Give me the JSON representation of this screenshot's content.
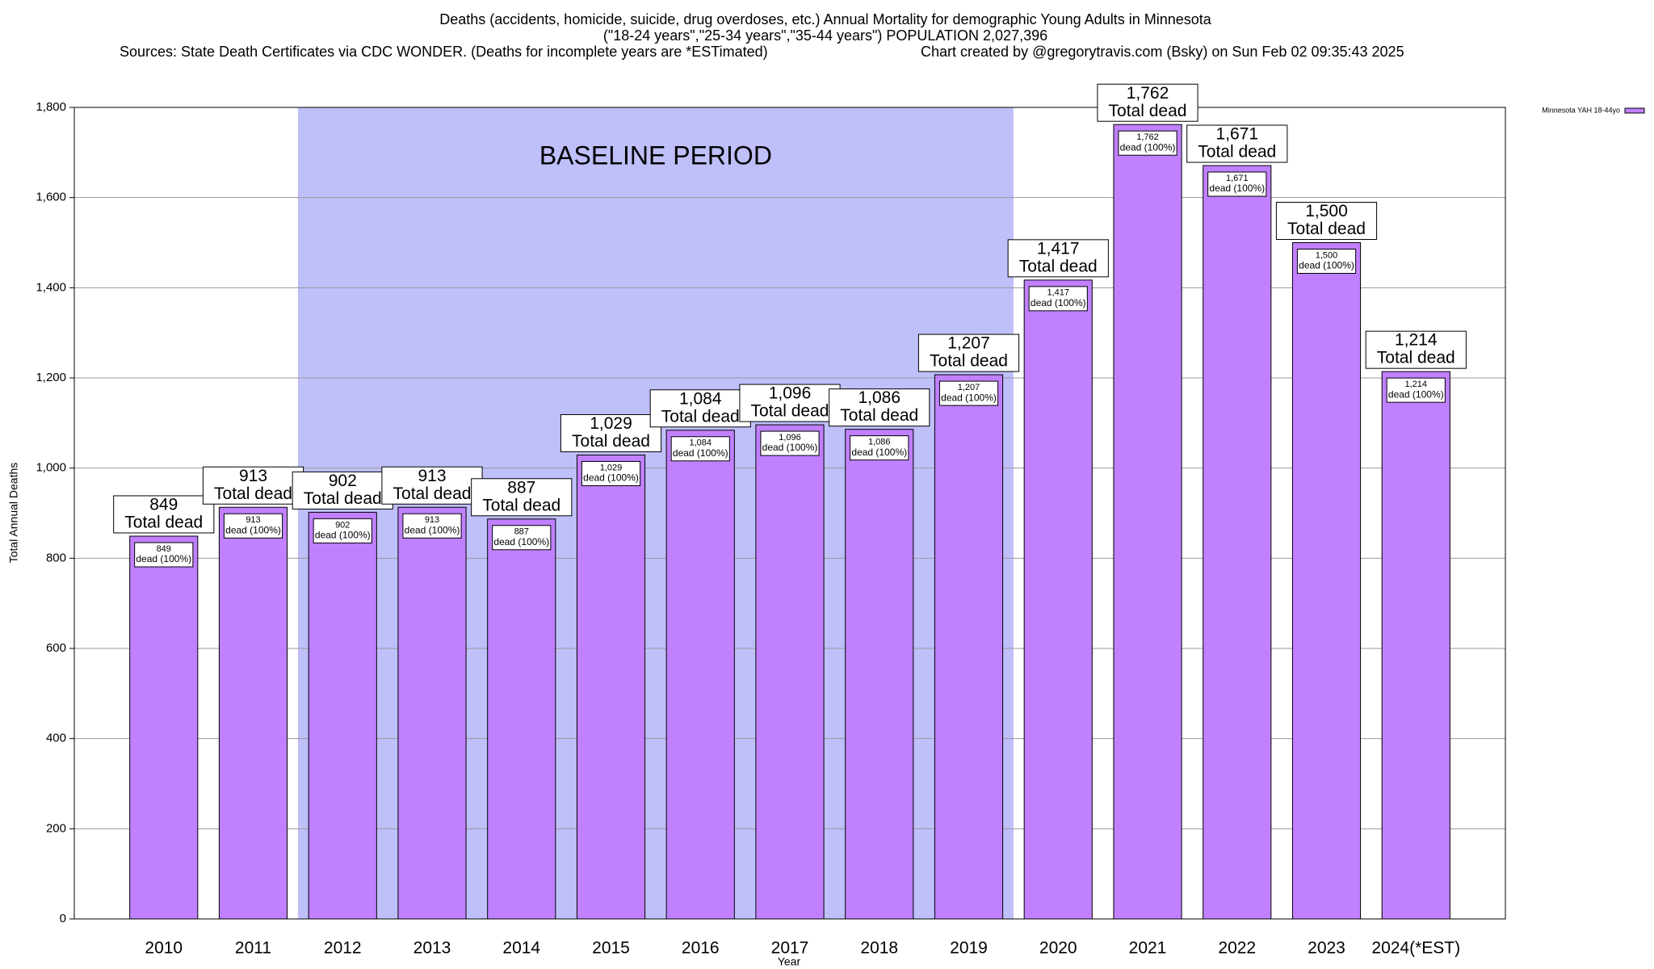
{
  "chart_data": {
    "type": "bar",
    "title": "Deaths (accidents, homicide, suicide, drug overdoses, etc.) Annual Mortality for demographic Young Adults in Minnesota",
    "subtitle": "(\"18-24 years\",\"25-34 years\",\"35-44 years\") POPULATION 2,027,396",
    "source": "Sources: State Death Certificates via CDC WONDER. (Deaths for incomplete years are *ESTimated)",
    "credit": "Chart created by @gregorytravis.com (Bsky) on Sun Feb 02 09:35:43 2025",
    "x_label": "Year",
    "y_label": "Total Annual Deaths",
    "categories": [
      "2010",
      "2011",
      "2012",
      "2013",
      "2014",
      "2015",
      "2016",
      "2017",
      "2018",
      "2019",
      "2020",
      "2021",
      "2022",
      "2023",
      "2024(*EST)"
    ],
    "series": [
      {
        "name": "Minnesota YAH 18-44yo",
        "color": "#c080ff",
        "values": [
          849,
          913,
          902,
          913,
          887,
          1029,
          1084,
          1096,
          1086,
          1207,
          1417,
          1762,
          1671,
          1500,
          1214
        ],
        "value_labels": [
          "849",
          "913",
          "902",
          "913",
          "887",
          "1,029",
          "1,084",
          "1,096",
          "1,086",
          "1,207",
          "1,417",
          "1,762",
          "1,671",
          "1,500",
          "1,214"
        ]
      }
    ],
    "top_label_text": "Total dead",
    "inner_label_text": "dead (100%)",
    "baseline": {
      "label": "BASELINE PERIOD",
      "start": "2012",
      "end": "2019",
      "color": "#bfbffa"
    },
    "ylim": [
      0,
      1800
    ],
    "yticks": [
      0,
      200,
      400,
      600,
      800,
      {
        "value": 1000,
        "label": "1,000"
      },
      {
        "value": 1200,
        "label": "1,200"
      },
      {
        "value": 1400,
        "label": "1,400"
      },
      {
        "value": 1600,
        "label": "1,600"
      },
      {
        "value": 1800,
        "label": "1,800"
      }
    ],
    "grid": true,
    "legend": "top-right"
  }
}
